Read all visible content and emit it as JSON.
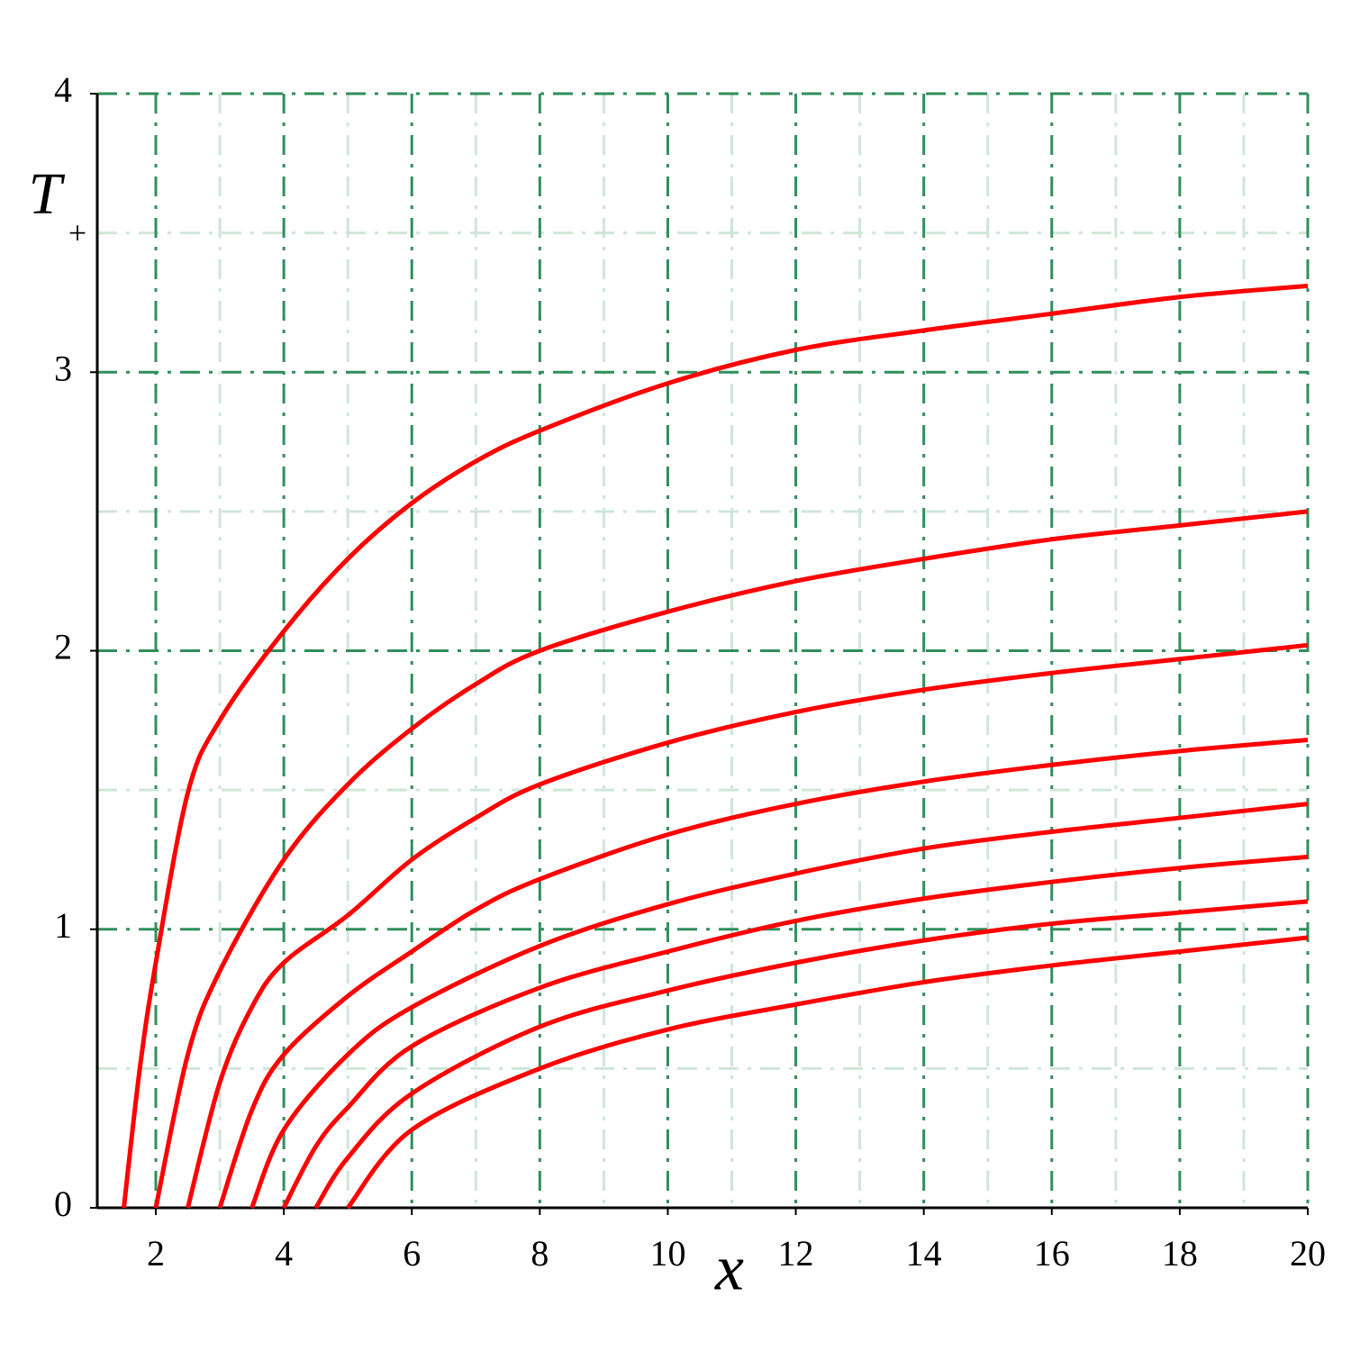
{
  "chart_data": {
    "type": "line",
    "xlabel": "x",
    "ylabel": "T",
    "ylabel_subscript": "+",
    "xlim": [
      1.085,
      20
    ],
    "ylim": [
      0,
      4
    ],
    "xticks": [
      2,
      4,
      6,
      8,
      10,
      12,
      14,
      16,
      18,
      20
    ],
    "yticks": [
      0,
      1,
      2,
      3,
      4
    ],
    "x_minor_grid": [
      3,
      5,
      7,
      9,
      11,
      13,
      15,
      17,
      19
    ],
    "y_minor_grid": [
      0.5,
      1.5,
      2.5,
      3.5
    ],
    "grid": true,
    "grid_color": "#2f8f5b",
    "minor_grid_color": "#cfe6da",
    "series": [
      {
        "color": "#ff0000",
        "x": [
          1.5,
          1.75,
          2,
          2.5,
          3,
          4,
          5,
          6,
          7,
          8,
          10,
          12,
          14,
          16,
          18,
          20
        ],
        "values": [
          0,
          0.5,
          0.88,
          1.49,
          1.75,
          2.07,
          2.33,
          2.53,
          2.68,
          2.79,
          2.96,
          3.08,
          3.15,
          3.21,
          3.27,
          3.31
        ]
      },
      {
        "color": "#ff0000",
        "x": [
          2,
          2.5,
          3,
          4,
          5,
          6,
          7,
          8,
          10,
          12,
          14,
          16,
          18,
          20
        ],
        "values": [
          0,
          0.55,
          0.85,
          1.25,
          1.52,
          1.72,
          1.88,
          2.0,
          2.14,
          2.25,
          2.33,
          2.4,
          2.45,
          2.5
        ]
      },
      {
        "color": "#ff0000",
        "x": [
          2.5,
          3,
          3.5,
          4,
          5,
          6,
          7,
          8,
          10,
          12,
          14,
          16,
          18,
          20
        ],
        "values": [
          0,
          0.45,
          0.72,
          0.88,
          1.05,
          1.25,
          1.4,
          1.52,
          1.67,
          1.78,
          1.86,
          1.92,
          1.97,
          2.02
        ]
      },
      {
        "color": "#ff0000",
        "x": [
          3,
          3.5,
          4,
          5,
          6,
          7,
          8,
          10,
          12,
          14,
          16,
          18,
          20
        ],
        "values": [
          0,
          0.35,
          0.55,
          0.76,
          0.92,
          1.07,
          1.18,
          1.34,
          1.45,
          1.53,
          1.59,
          1.64,
          1.68
        ]
      },
      {
        "color": "#ff0000",
        "x": [
          3.5,
          4,
          5,
          6,
          8,
          10,
          12,
          14,
          16,
          18,
          20
        ],
        "values": [
          0,
          0.28,
          0.55,
          0.72,
          0.94,
          1.09,
          1.2,
          1.29,
          1.35,
          1.4,
          1.45
        ]
      },
      {
        "color": "#ff0000",
        "x": [
          4,
          4.5,
          5,
          6,
          8,
          10,
          12,
          14,
          16,
          18,
          20
        ],
        "values": [
          0,
          0.22,
          0.36,
          0.58,
          0.79,
          0.92,
          1.03,
          1.11,
          1.17,
          1.22,
          1.26
        ]
      },
      {
        "color": "#ff0000",
        "x": [
          4.5,
          5,
          6,
          8,
          10,
          12,
          14,
          16,
          18,
          20
        ],
        "values": [
          0,
          0.18,
          0.41,
          0.65,
          0.78,
          0.88,
          0.96,
          1.02,
          1.06,
          1.1
        ]
      },
      {
        "color": "#ff0000",
        "x": [
          5,
          6,
          8,
          10,
          12,
          14,
          16,
          18,
          20
        ],
        "values": [
          0,
          0.28,
          0.5,
          0.64,
          0.73,
          0.81,
          0.87,
          0.92,
          0.97
        ]
      }
    ]
  }
}
